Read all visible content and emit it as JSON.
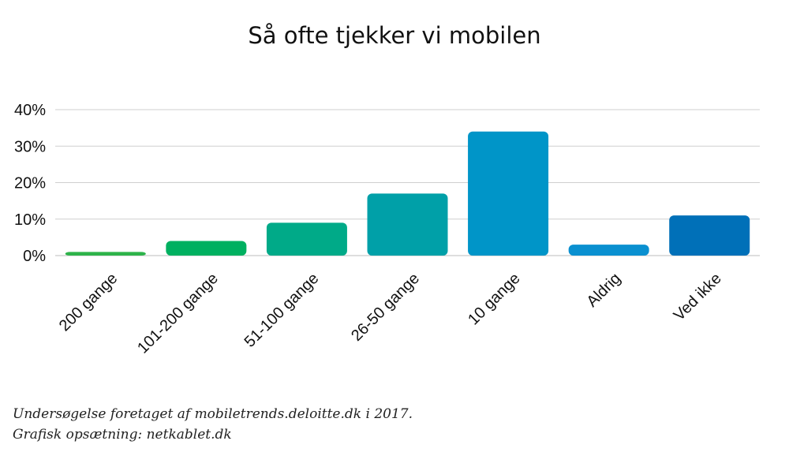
{
  "chart_data": {
    "type": "bar",
    "title": "Så ofte tjekker vi mobilen",
    "categories": [
      "200 gange",
      "101-200 gange",
      "51-100 gange",
      "26-50 gange",
      "10 gange",
      "Aldrig",
      "Ved ikke"
    ],
    "values": [
      1,
      4,
      9,
      17,
      34,
      3,
      11
    ],
    "ylim": [
      0,
      40
    ],
    "yticks": [
      "0%",
      "10%",
      "20%",
      "30%",
      "40%"
    ],
    "grid": true,
    "colors": [
      "#2DB34A",
      "#00B060",
      "#00AA88",
      "#00A0A8",
      "#0095C8",
      "#0A90D0",
      "#0070B8"
    ]
  },
  "caption": {
    "line1": "Undersøgelse foretaget af mobiletrends.deloitte.dk i 2017.",
    "line2": "Grafisk opsætning: netkablet.dk"
  }
}
